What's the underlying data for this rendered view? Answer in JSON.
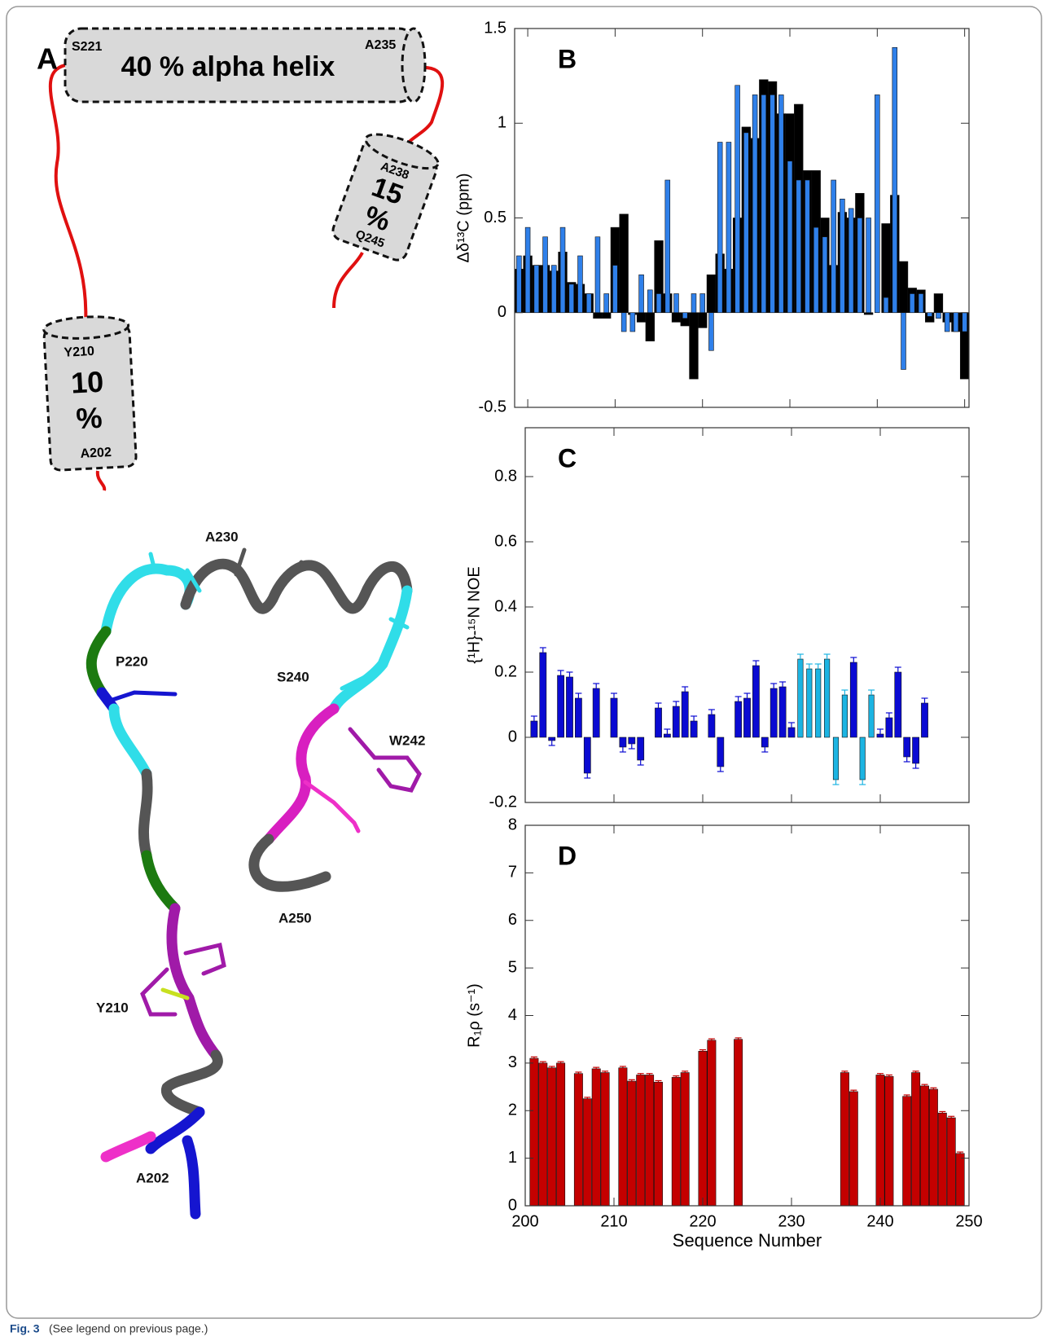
{
  "panel_a": {
    "label": "A",
    "helix_main": {
      "start": "S221",
      "end": "A235",
      "text": "40 % alpha helix"
    },
    "helix_2": {
      "start": "A238",
      "percent": "15",
      "unit": "%",
      "end": "Q245"
    },
    "helix_3": {
      "start": "Y210",
      "percent": "10",
      "unit": "%",
      "end": "A202"
    }
  },
  "structure_labels": [
    "A230",
    "P220",
    "S240",
    "W242",
    "A250",
    "Y210",
    "A202"
  ],
  "caption": {
    "label": "Fig. 3",
    "text": "(See legend on previous page.)"
  },
  "chart_data": [
    {
      "type": "bar",
      "annotation": "B",
      "ylabel": "Δδ¹³C (ppm)",
      "x": [
        199,
        200,
        201,
        202,
        203,
        204,
        205,
        206,
        207,
        208,
        209,
        210,
        211,
        212,
        213,
        214,
        215,
        216,
        217,
        218,
        219,
        220,
        221,
        222,
        223,
        224,
        225,
        226,
        227,
        228,
        229,
        230,
        231,
        232,
        233,
        234,
        235,
        236,
        237,
        238,
        239,
        240,
        241,
        242,
        243,
        244,
        245,
        246,
        247,
        248,
        249,
        250
      ],
      "series": [
        {
          "color": "#000000",
          "values": [
            0.23,
            0.3,
            0.25,
            0.25,
            0.22,
            0.32,
            0.16,
            0.15,
            0.1,
            -0.03,
            -0.03,
            0.45,
            0.52,
            -0.01,
            -0.05,
            -0.15,
            0.38,
            0.1,
            -0.05,
            -0.07,
            -0.35,
            -0.08,
            0.2,
            0.31,
            0.23,
            0.5,
            0.98,
            0.92,
            1.23,
            1.22,
            1.05,
            1.05,
            1.1,
            0.75,
            0.75,
            0.5,
            0.25,
            0.53,
            0.5,
            0.63,
            -0.01,
            0,
            0.47,
            0.62,
            0.27,
            0.13,
            0.12,
            -0.05,
            0.1,
            -0.05,
            -0.1,
            -0.35
          ]
        },
        {
          "color": "#2f80ea",
          "values": [
            0.3,
            0.45,
            0.25,
            0.4,
            0.25,
            0.45,
            0.15,
            0.3,
            0.1,
            0.4,
            0.1,
            0.25,
            -0.1,
            -0.1,
            0.2,
            0.12,
            0.1,
            0.7,
            0.1,
            -0.03,
            0.1,
            0.1,
            -0.2,
            0.9,
            0.9,
            1.2,
            0.95,
            1.15,
            1.15,
            1.15,
            1.15,
            0.8,
            0.7,
            0.7,
            0.45,
            0.4,
            0.7,
            0.6,
            0.55,
            0.5,
            0.5,
            1.15,
            0.08,
            1.4,
            -0.3,
            0.1,
            0.1,
            -0.02,
            -0.03,
            -0.1,
            -0.1,
            -0.1
          ]
        }
      ],
      "xlim": [
        198.5,
        250.5
      ],
      "xticks": [
        200,
        210,
        220,
        230,
        240,
        250
      ],
      "xtick_labels": false,
      "ylim": [
        -0.5,
        1.5
      ],
      "yticks": [
        -0.5,
        0,
        0.5,
        1,
        1.5
      ]
    },
    {
      "type": "bar",
      "annotation": "C",
      "ylabel": "{¹H}-¹⁵N NOE",
      "x": [
        201,
        202,
        203,
        204,
        205,
        206,
        207,
        208,
        209,
        210,
        211,
        212,
        213,
        214,
        215,
        216,
        217,
        218,
        219,
        220,
        221,
        222,
        223,
        224,
        225,
        226,
        227,
        228,
        229,
        230,
        231,
        232,
        233,
        234,
        235,
        236,
        237,
        238,
        239,
        240,
        241,
        242,
        243,
        244,
        245
      ],
      "series": [
        {
          "color": "#0a0ad2",
          "values": [
            0.05,
            0.26,
            -0.01,
            0.19,
            0.185,
            0.12,
            -0.11,
            0.15,
            null,
            0.12,
            -0.03,
            -0.02,
            -0.07,
            null,
            0.09,
            0.01,
            0.095,
            0.14,
            0.05,
            null,
            0.07,
            -0.09,
            null,
            0.11,
            0.12,
            0.22,
            -0.03,
            0.15,
            0.155,
            0.03,
            null,
            null,
            null,
            null,
            null,
            null,
            0.23,
            null,
            null,
            0.01,
            0.06,
            0.2,
            -0.06,
            -0.08,
            0.105
          ],
          "errors": [
            0.015,
            0.015,
            0.015,
            0.015,
            0.015,
            0.015,
            0.015,
            0.015,
            null,
            0.015,
            0.015,
            0.015,
            0.015,
            null,
            0.015,
            0.015,
            0.015,
            0.015,
            0.015,
            null,
            0.015,
            0.015,
            null,
            0.015,
            0.015,
            0.015,
            0.015,
            0.015,
            0.015,
            0.015,
            null,
            null,
            null,
            null,
            null,
            null,
            0.015,
            null,
            null,
            0.015,
            0.015,
            0.015,
            0.015,
            0.015,
            0.015
          ]
        },
        {
          "color": "#1cb4e2",
          "values": [
            null,
            null,
            null,
            null,
            null,
            null,
            null,
            null,
            null,
            null,
            null,
            null,
            null,
            null,
            null,
            null,
            null,
            null,
            null,
            null,
            null,
            null,
            null,
            null,
            null,
            null,
            null,
            null,
            null,
            null,
            0.24,
            0.21,
            0.21,
            0.24,
            -0.13,
            0.13,
            null,
            -0.13,
            0.13,
            null,
            null,
            null,
            null,
            null,
            null
          ],
          "errors": [
            null,
            null,
            null,
            null,
            null,
            null,
            null,
            null,
            null,
            null,
            null,
            null,
            null,
            null,
            null,
            null,
            null,
            null,
            null,
            null,
            null,
            null,
            null,
            null,
            null,
            null,
            null,
            null,
            null,
            null,
            0.015,
            0.015,
            0.015,
            0.015,
            0.015,
            0.015,
            null,
            0.015,
            0.015,
            null,
            null,
            null,
            null,
            null,
            null
          ]
        }
      ],
      "xlim": [
        200,
        250
      ],
      "xticks": [
        200,
        210,
        220,
        230,
        240,
        250
      ],
      "xtick_labels": false,
      "ylim": [
        -0.2,
        0.95
      ],
      "yticks": [
        -0.2,
        0,
        0.2,
        0.4,
        0.6,
        0.8
      ]
    },
    {
      "type": "bar",
      "annotation": "D",
      "ylabel": "R₁ρ (s⁻¹)",
      "xlabel": "Sequence Number",
      "x": [
        201,
        202,
        203,
        204,
        206,
        207,
        208,
        209,
        211,
        212,
        213,
        214,
        215,
        217,
        218,
        220,
        221,
        224,
        236,
        237,
        240,
        241,
        243,
        244,
        245,
        246,
        247,
        248,
        249
      ],
      "series": [
        {
          "color": "#c40000",
          "values": [
            3.1,
            3.0,
            2.9,
            3.0,
            2.78,
            2.25,
            2.88,
            2.8,
            2.9,
            2.62,
            2.75,
            2.75,
            2.6,
            2.7,
            2.8,
            3.25,
            3.48,
            3.5,
            2.8,
            2.4,
            2.75,
            2.72,
            2.3,
            2.8,
            2.52,
            2.45,
            1.95,
            1.85,
            1.1
          ],
          "errors": [
            0.03,
            0.03,
            0.03,
            0.03,
            0.03,
            0.03,
            0.03,
            0.03,
            0.03,
            0.03,
            0.03,
            0.03,
            0.03,
            0.03,
            0.03,
            0.03,
            0.03,
            0.03,
            0.03,
            0.03,
            0.03,
            0.03,
            0.03,
            0.03,
            0.03,
            0.03,
            0.03,
            0.03,
            0.03
          ]
        }
      ],
      "xlim": [
        200,
        250
      ],
      "xticks": [
        200,
        210,
        220,
        230,
        240,
        250
      ],
      "xtick_labels": true,
      "ylim": [
        0,
        8
      ],
      "yticks": [
        0,
        1,
        2,
        3,
        4,
        5,
        6,
        7,
        8
      ]
    }
  ]
}
